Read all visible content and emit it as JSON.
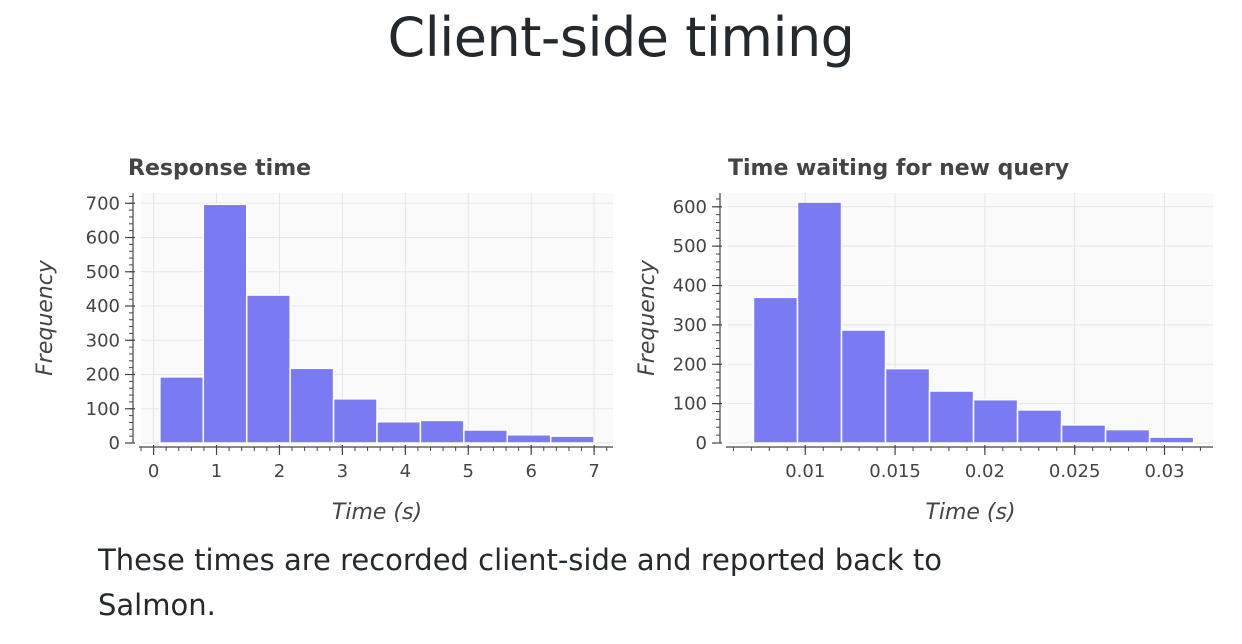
{
  "page": {
    "title": "Client-side timing",
    "caption": "These times are recorded client-side and reported back to Salmon."
  },
  "colors": {
    "bar_fill": "#7a7af2",
    "bar_stroke": "#ffffff",
    "plot_bg": "#fafafa",
    "grid": "#e5e5e5",
    "axis": "#444444",
    "text": "#444444"
  },
  "chart_data": [
    {
      "type": "bar",
      "subtype": "histogram",
      "title": "Response time",
      "xlabel": "Time (s)",
      "ylabel": "Frequency",
      "xlim": [
        -0.2,
        7.3
      ],
      "ylim": [
        0,
        730
      ],
      "xticks": [
        0,
        1,
        2,
        3,
        4,
        5,
        6,
        7
      ],
      "xtick_labels": [
        "0",
        "1",
        "2",
        "3",
        "4",
        "5",
        "6",
        "7"
      ],
      "yticks": [
        0,
        100,
        200,
        300,
        400,
        500,
        600,
        700
      ],
      "ytick_labels": [
        "0",
        "100",
        "200",
        "300",
        "400",
        "500",
        "600",
        "700"
      ],
      "grid": true,
      "bins": [
        {
          "x0": 0.1,
          "x1": 0.79,
          "value": 193
        },
        {
          "x0": 0.79,
          "x1": 1.48,
          "value": 697
        },
        {
          "x0": 1.48,
          "x1": 2.17,
          "value": 432
        },
        {
          "x0": 2.17,
          "x1": 2.86,
          "value": 218
        },
        {
          "x0": 2.86,
          "x1": 3.55,
          "value": 129
        },
        {
          "x0": 3.55,
          "x1": 4.24,
          "value": 62
        },
        {
          "x0": 4.24,
          "x1": 4.93,
          "value": 66
        },
        {
          "x0": 4.93,
          "x1": 5.62,
          "value": 38
        },
        {
          "x0": 5.62,
          "x1": 6.31,
          "value": 24
        },
        {
          "x0": 6.31,
          "x1": 7.0,
          "value": 20
        }
      ]
    },
    {
      "type": "bar",
      "subtype": "histogram",
      "title": "Time waiting for new query",
      "xlabel": "Time (s)",
      "ylabel": "Frequency",
      "xlim": [
        0.0057,
        0.0327
      ],
      "ylim": [
        0,
        635
      ],
      "xticks": [
        0.01,
        0.015,
        0.02,
        0.025,
        0.03
      ],
      "xtick_labels": [
        "0.01",
        "0.015",
        "0.02",
        "0.025",
        "0.03"
      ],
      "yticks": [
        0,
        100,
        200,
        300,
        400,
        500,
        600
      ],
      "ytick_labels": [
        "0",
        "100",
        "200",
        "300",
        "400",
        "500",
        "600"
      ],
      "grid": true,
      "bins": [
        {
          "x0": 0.00712,
          "x1": 0.00957,
          "value": 370
        },
        {
          "x0": 0.00957,
          "x1": 0.01202,
          "value": 612
        },
        {
          "x0": 0.01202,
          "x1": 0.01447,
          "value": 287
        },
        {
          "x0": 0.01447,
          "x1": 0.01692,
          "value": 189
        },
        {
          "x0": 0.01692,
          "x1": 0.01937,
          "value": 132
        },
        {
          "x0": 0.01937,
          "x1": 0.02182,
          "value": 110
        },
        {
          "x0": 0.02182,
          "x1": 0.02427,
          "value": 84
        },
        {
          "x0": 0.02427,
          "x1": 0.02672,
          "value": 46
        },
        {
          "x0": 0.02672,
          "x1": 0.02917,
          "value": 34
        },
        {
          "x0": 0.02917,
          "x1": 0.03162,
          "value": 15
        }
      ]
    }
  ]
}
